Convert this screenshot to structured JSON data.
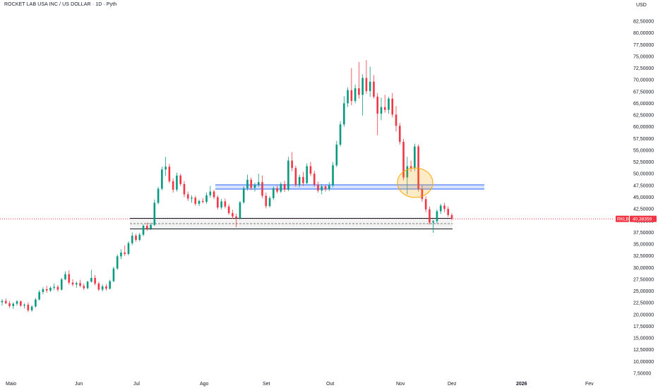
{
  "header": {
    "title": "ROCKET LAB USA INC / US DOLLAR · 1D · Pyth",
    "currency": "USD"
  },
  "price_tag": {
    "symbol": "RKLB",
    "value": "40,38359",
    "color": "#f23645"
  },
  "colors": {
    "up": "#089981",
    "down": "#f23645",
    "resistance_zone": "#2962ff",
    "support_zone": "#131722",
    "highlight_ellipse": "#f7a600"
  },
  "chart_data": {
    "type": "candlestick",
    "y_axis_labels": [
      "82,50000",
      "80,00000",
      "77,50000",
      "75,00000",
      "72,50000",
      "70,00000",
      "67,50000",
      "65,00000",
      "62,50000",
      "60,00000",
      "57,50000",
      "55,00000",
      "52,50000",
      "50,00000",
      "47,50000",
      "45,00000",
      "42,50000",
      "40,00000",
      "37,50000",
      "35,00000",
      "32,50000",
      "30,00000",
      "27,50000",
      "25,00000",
      "22,50000",
      "20,00000",
      "17,50000",
      "15,00000",
      "12,50000",
      "10,00000",
      "7,50000"
    ],
    "x_axis_labels": [
      {
        "label": "Maio",
        "bold": false
      },
      {
        "label": "Jun",
        "bold": false
      },
      {
        "label": "Jul",
        "bold": false
      },
      {
        "label": "Ago",
        "bold": false
      },
      {
        "label": "Set",
        "bold": false
      },
      {
        "label": "Out",
        "bold": false
      },
      {
        "label": "Nov",
        "bold": false
      },
      {
        "label": "Dez",
        "bold": false
      },
      {
        "label": "2026",
        "bold": true
      },
      {
        "label": "Fev",
        "bold": false
      }
    ],
    "ylim": [
      7.5,
      82.5
    ],
    "last_price": 40.38359,
    "series": [
      {
        "o": 22.6,
        "h": 23.3,
        "l": 21.9,
        "c": 22.9
      },
      {
        "o": 22.9,
        "h": 23.4,
        "l": 22.2,
        "c": 22.4
      },
      {
        "o": 22.4,
        "h": 22.9,
        "l": 21.4,
        "c": 21.8
      },
      {
        "o": 21.8,
        "h": 22.6,
        "l": 21.2,
        "c": 22.3
      },
      {
        "o": 22.3,
        "h": 23.1,
        "l": 21.9,
        "c": 22.8
      },
      {
        "o": 22.8,
        "h": 23.0,
        "l": 21.6,
        "c": 21.9
      },
      {
        "o": 21.9,
        "h": 22.4,
        "l": 21.3,
        "c": 22.1
      },
      {
        "o": 22.1,
        "h": 22.6,
        "l": 20.5,
        "c": 20.9
      },
      {
        "o": 20.9,
        "h": 22.0,
        "l": 20.6,
        "c": 21.7
      },
      {
        "o": 21.7,
        "h": 23.5,
        "l": 21.5,
        "c": 23.2
      },
      {
        "o": 23.2,
        "h": 25.2,
        "l": 23.0,
        "c": 24.8
      },
      {
        "o": 24.8,
        "h": 25.8,
        "l": 24.3,
        "c": 25.4
      },
      {
        "o": 25.4,
        "h": 26.1,
        "l": 24.6,
        "c": 25.1
      },
      {
        "o": 25.1,
        "h": 26.0,
        "l": 24.8,
        "c": 25.7
      },
      {
        "o": 25.7,
        "h": 26.6,
        "l": 25.2,
        "c": 25.9
      },
      {
        "o": 25.9,
        "h": 26.3,
        "l": 24.9,
        "c": 25.3
      },
      {
        "o": 25.3,
        "h": 27.8,
        "l": 25.1,
        "c": 27.5
      },
      {
        "o": 27.5,
        "h": 29.2,
        "l": 27.3,
        "c": 28.6
      },
      {
        "o": 28.6,
        "h": 29.4,
        "l": 26.4,
        "c": 26.8
      },
      {
        "o": 26.8,
        "h": 27.5,
        "l": 26.0,
        "c": 26.4
      },
      {
        "o": 26.4,
        "h": 27.0,
        "l": 25.7,
        "c": 26.7
      },
      {
        "o": 26.7,
        "h": 27.4,
        "l": 25.8,
        "c": 26.1
      },
      {
        "o": 26.1,
        "h": 26.6,
        "l": 25.2,
        "c": 25.6
      },
      {
        "o": 25.6,
        "h": 27.2,
        "l": 25.4,
        "c": 27.0
      },
      {
        "o": 27.0,
        "h": 29.5,
        "l": 26.8,
        "c": 27.8
      },
      {
        "o": 27.8,
        "h": 28.4,
        "l": 26.2,
        "c": 26.6
      },
      {
        "o": 26.6,
        "h": 27.0,
        "l": 25.0,
        "c": 25.3
      },
      {
        "o": 25.3,
        "h": 26.4,
        "l": 24.9,
        "c": 26.0
      },
      {
        "o": 26.0,
        "h": 26.5,
        "l": 25.1,
        "c": 25.5
      },
      {
        "o": 25.5,
        "h": 27.4,
        "l": 25.3,
        "c": 27.1
      },
      {
        "o": 27.1,
        "h": 30.2,
        "l": 26.9,
        "c": 29.8
      },
      {
        "o": 29.8,
        "h": 32.8,
        "l": 29.5,
        "c": 32.4
      },
      {
        "o": 32.4,
        "h": 33.9,
        "l": 31.8,
        "c": 33.2
      },
      {
        "o": 33.2,
        "h": 34.7,
        "l": 32.5,
        "c": 32.9
      },
      {
        "o": 32.9,
        "h": 35.6,
        "l": 32.6,
        "c": 35.2
      },
      {
        "o": 35.2,
        "h": 37.5,
        "l": 34.8,
        "c": 36.8
      },
      {
        "o": 36.8,
        "h": 37.2,
        "l": 35.5,
        "c": 35.9
      },
      {
        "o": 35.9,
        "h": 37.4,
        "l": 35.6,
        "c": 37.0
      },
      {
        "o": 37.0,
        "h": 39.2,
        "l": 36.7,
        "c": 38.9
      },
      {
        "o": 38.9,
        "h": 39.6,
        "l": 37.8,
        "c": 38.3
      },
      {
        "o": 38.3,
        "h": 39.5,
        "l": 38.0,
        "c": 39.1
      },
      {
        "o": 39.1,
        "h": 44.5,
        "l": 38.9,
        "c": 43.8
      },
      {
        "o": 43.8,
        "h": 47.2,
        "l": 43.5,
        "c": 46.8
      },
      {
        "o": 46.8,
        "h": 51.5,
        "l": 46.5,
        "c": 50.9
      },
      {
        "o": 50.9,
        "h": 53.6,
        "l": 49.5,
        "c": 51.5
      },
      {
        "o": 51.5,
        "h": 52.1,
        "l": 48.0,
        "c": 48.4
      },
      {
        "o": 48.4,
        "h": 49.0,
        "l": 46.0,
        "c": 46.6
      },
      {
        "o": 46.6,
        "h": 50.2,
        "l": 46.2,
        "c": 49.6
      },
      {
        "o": 49.6,
        "h": 50.0,
        "l": 47.4,
        "c": 47.8
      },
      {
        "o": 47.8,
        "h": 48.4,
        "l": 45.0,
        "c": 45.6
      },
      {
        "o": 45.6,
        "h": 46.2,
        "l": 44.2,
        "c": 44.7
      },
      {
        "o": 44.7,
        "h": 45.4,
        "l": 43.8,
        "c": 44.9
      },
      {
        "o": 44.9,
        "h": 45.3,
        "l": 43.2,
        "c": 43.6
      },
      {
        "o": 43.6,
        "h": 44.5,
        "l": 43.1,
        "c": 44.2
      },
      {
        "o": 44.2,
        "h": 44.8,
        "l": 43.7,
        "c": 44.0
      },
      {
        "o": 44.0,
        "h": 46.0,
        "l": 43.6,
        "c": 45.4
      },
      {
        "o": 45.4,
        "h": 47.4,
        "l": 44.9,
        "c": 46.2
      },
      {
        "o": 46.2,
        "h": 46.6,
        "l": 44.6,
        "c": 45.0
      },
      {
        "o": 45.0,
        "h": 45.4,
        "l": 42.4,
        "c": 42.8
      },
      {
        "o": 42.8,
        "h": 44.6,
        "l": 42.4,
        "c": 44.1
      },
      {
        "o": 44.1,
        "h": 44.7,
        "l": 42.6,
        "c": 43.0
      },
      {
        "o": 43.0,
        "h": 43.5,
        "l": 41.2,
        "c": 41.6
      },
      {
        "o": 41.6,
        "h": 42.3,
        "l": 40.4,
        "c": 40.9
      },
      {
        "o": 40.9,
        "h": 41.5,
        "l": 38.6,
        "c": 40.5
      },
      {
        "o": 40.5,
        "h": 44.2,
        "l": 40.2,
        "c": 43.9
      },
      {
        "o": 43.9,
        "h": 47.3,
        "l": 43.6,
        "c": 46.9
      },
      {
        "o": 46.9,
        "h": 49.8,
        "l": 46.4,
        "c": 48.7
      },
      {
        "o": 48.7,
        "h": 49.2,
        "l": 46.5,
        "c": 47.0
      },
      {
        "o": 47.0,
        "h": 48.1,
        "l": 46.2,
        "c": 47.6
      },
      {
        "o": 47.6,
        "h": 50.0,
        "l": 47.2,
        "c": 48.2
      },
      {
        "o": 48.2,
        "h": 49.6,
        "l": 44.8,
        "c": 45.3
      },
      {
        "o": 45.3,
        "h": 46.0,
        "l": 42.6,
        "c": 43.1
      },
      {
        "o": 43.1,
        "h": 45.2,
        "l": 42.8,
        "c": 44.8
      },
      {
        "o": 44.8,
        "h": 47.3,
        "l": 44.4,
        "c": 46.9
      },
      {
        "o": 46.9,
        "h": 47.5,
        "l": 45.8,
        "c": 46.2
      },
      {
        "o": 46.2,
        "h": 48.2,
        "l": 45.9,
        "c": 47.8
      },
      {
        "o": 47.8,
        "h": 48.5,
        "l": 46.1,
        "c": 46.6
      },
      {
        "o": 46.6,
        "h": 53.6,
        "l": 46.3,
        "c": 52.8
      },
      {
        "o": 52.8,
        "h": 54.6,
        "l": 50.5,
        "c": 51.2
      },
      {
        "o": 51.2,
        "h": 51.7,
        "l": 47.2,
        "c": 47.6
      },
      {
        "o": 47.6,
        "h": 49.8,
        "l": 47.1,
        "c": 49.3
      },
      {
        "o": 49.3,
        "h": 50.4,
        "l": 47.4,
        "c": 48.0
      },
      {
        "o": 48.0,
        "h": 52.2,
        "l": 47.8,
        "c": 51.6
      },
      {
        "o": 51.6,
        "h": 52.5,
        "l": 49.5,
        "c": 50.0
      },
      {
        "o": 50.0,
        "h": 50.6,
        "l": 47.2,
        "c": 47.7
      },
      {
        "o": 47.7,
        "h": 48.3,
        "l": 46.0,
        "c": 46.4
      },
      {
        "o": 46.4,
        "h": 47.8,
        "l": 45.6,
        "c": 47.3
      },
      {
        "o": 47.3,
        "h": 47.6,
        "l": 46.2,
        "c": 46.7
      },
      {
        "o": 46.7,
        "h": 48.2,
        "l": 46.3,
        "c": 47.5
      },
      {
        "o": 47.5,
        "h": 52.5,
        "l": 47.1,
        "c": 51.8
      },
      {
        "o": 51.8,
        "h": 57.0,
        "l": 51.4,
        "c": 56.2
      },
      {
        "o": 56.2,
        "h": 61.2,
        "l": 55.8,
        "c": 60.5
      },
      {
        "o": 60.5,
        "h": 66.5,
        "l": 60.0,
        "c": 65.0
      },
      {
        "o": 65.0,
        "h": 68.4,
        "l": 64.2,
        "c": 67.8
      },
      {
        "o": 67.8,
        "h": 72.5,
        "l": 64.6,
        "c": 65.5
      },
      {
        "o": 65.5,
        "h": 69.0,
        "l": 65.0,
        "c": 68.2
      },
      {
        "o": 68.2,
        "h": 73.8,
        "l": 66.0,
        "c": 66.8
      },
      {
        "o": 66.8,
        "h": 71.2,
        "l": 62.4,
        "c": 70.4
      },
      {
        "o": 70.4,
        "h": 74.2,
        "l": 67.0,
        "c": 67.6
      },
      {
        "o": 67.6,
        "h": 72.8,
        "l": 66.4,
        "c": 69.6
      },
      {
        "o": 69.6,
        "h": 71.0,
        "l": 66.0,
        "c": 66.4
      },
      {
        "o": 66.4,
        "h": 67.2,
        "l": 58.2,
        "c": 62.8
      },
      {
        "o": 62.8,
        "h": 66.2,
        "l": 61.4,
        "c": 64.2
      },
      {
        "o": 64.2,
        "h": 66.8,
        "l": 63.0,
        "c": 63.6
      },
      {
        "o": 63.6,
        "h": 66.4,
        "l": 62.8,
        "c": 66.0
      },
      {
        "o": 66.0,
        "h": 67.2,
        "l": 62.0,
        "c": 62.6
      },
      {
        "o": 62.6,
        "h": 64.4,
        "l": 59.0,
        "c": 60.2
      },
      {
        "o": 60.2,
        "h": 60.8,
        "l": 56.2,
        "c": 56.8
      },
      {
        "o": 56.8,
        "h": 57.4,
        "l": 48.6,
        "c": 49.2
      },
      {
        "o": 49.2,
        "h": 53.6,
        "l": 45.6,
        "c": 51.6
      },
      {
        "o": 51.6,
        "h": 52.8,
        "l": 50.4,
        "c": 51.2
      },
      {
        "o": 51.2,
        "h": 56.4,
        "l": 50.6,
        "c": 55.8
      },
      {
        "o": 55.8,
        "h": 56.2,
        "l": 46.2,
        "c": 46.8
      },
      {
        "o": 46.8,
        "h": 47.5,
        "l": 44.0,
        "c": 44.6
      },
      {
        "o": 44.6,
        "h": 45.2,
        "l": 41.8,
        "c": 42.4
      },
      {
        "o": 42.4,
        "h": 43.0,
        "l": 39.2,
        "c": 39.6
      },
      {
        "o": 39.6,
        "h": 40.2,
        "l": 37.4,
        "c": 39.9
      },
      {
        "o": 39.9,
        "h": 42.4,
        "l": 39.4,
        "c": 42.0
      },
      {
        "o": 42.0,
        "h": 43.6,
        "l": 41.4,
        "c": 43.2
      },
      {
        "o": 43.2,
        "h": 43.8,
        "l": 41.8,
        "c": 42.5
      },
      {
        "o": 42.5,
        "h": 43.0,
        "l": 40.8,
        "c": 41.2
      },
      {
        "o": 41.2,
        "h": 41.6,
        "l": 40.1,
        "c": 40.38359
      }
    ]
  }
}
